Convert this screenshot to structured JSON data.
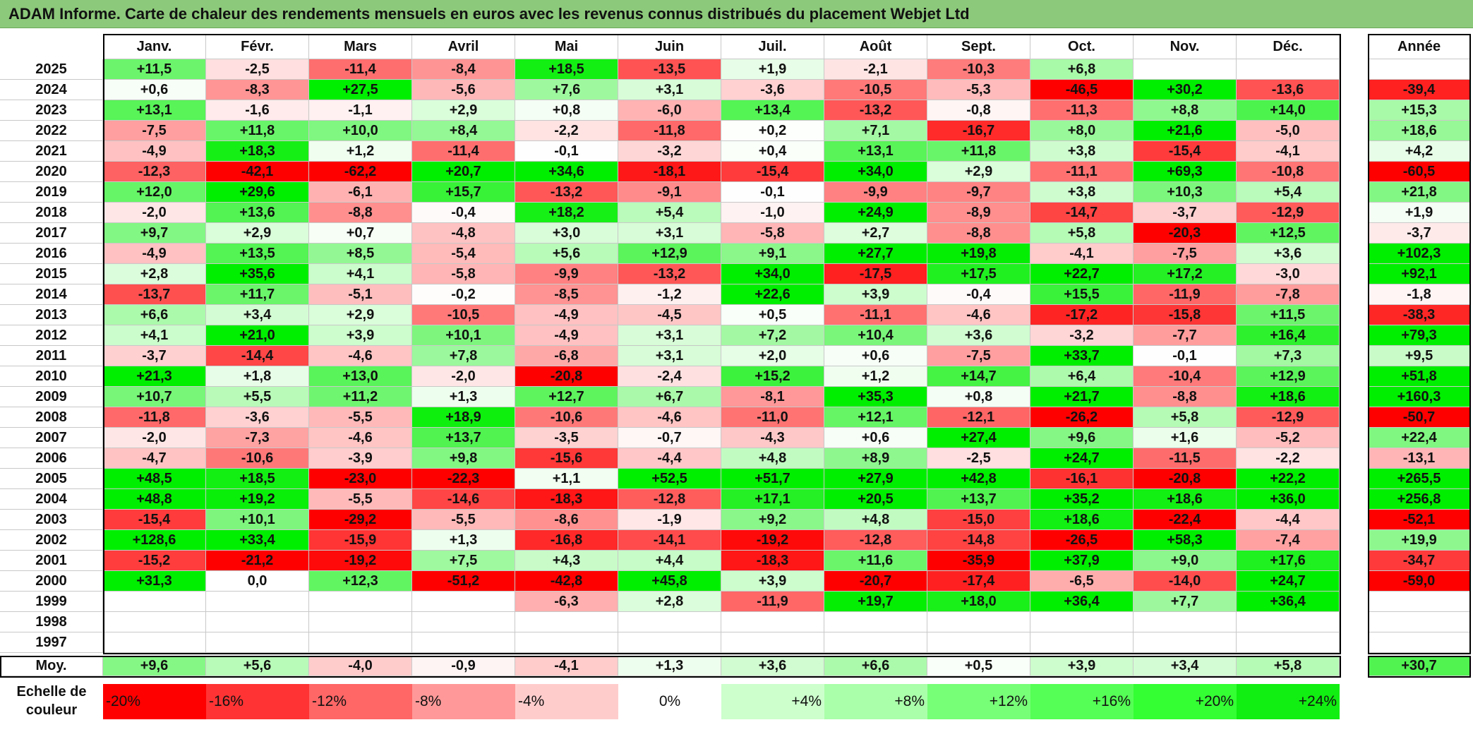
{
  "title": "ADAM Informe. Carte de chaleur des rendements mensuels en euros avec les revenus connus distribués du placement Webjet Ltd",
  "chart_data": {
    "type": "heatmap",
    "months": [
      "Janv.",
      "Févr.",
      "Mars",
      "Avril",
      "Mai",
      "Juin",
      "Juil.",
      "Août",
      "Sept.",
      "Oct.",
      "Nov.",
      "Déc."
    ],
    "year_header": "Année",
    "rows": [
      {
        "year": "2025",
        "values": [
          "+11,5",
          "-2,5",
          "-11,4",
          "-8,4",
          "+18,5",
          "-13,5",
          "+1,9",
          "-2,1",
          "-10,3",
          "+6,8",
          "",
          ""
        ],
        "annual": ""
      },
      {
        "year": "2024",
        "values": [
          "+0,6",
          "-8,3",
          "+27,5",
          "-5,6",
          "+7,6",
          "+3,1",
          "-3,6",
          "-10,5",
          "-5,3",
          "-46,5",
          "+30,2",
          "-13,6"
        ],
        "annual": "-39,4"
      },
      {
        "year": "2023",
        "values": [
          "+13,1",
          "-1,6",
          "-1,1",
          "+2,9",
          "+0,8",
          "-6,0",
          "+13,4",
          "-13,2",
          "-0,8",
          "-11,3",
          "+8,8",
          "+14,0"
        ],
        "annual": "+15,3"
      },
      {
        "year": "2022",
        "values": [
          "-7,5",
          "+11,8",
          "+10,0",
          "+8,4",
          "-2,2",
          "-11,8",
          "+0,2",
          "+7,1",
          "-16,7",
          "+8,0",
          "+21,6",
          "-5,0"
        ],
        "annual": "+18,6"
      },
      {
        "year": "2021",
        "values": [
          "-4,9",
          "+18,3",
          "+1,2",
          "-11,4",
          "-0,1",
          "-3,2",
          "+0,4",
          "+13,1",
          "+11,8",
          "+3,8",
          "-15,4",
          "-4,1"
        ],
        "annual": "+4,2"
      },
      {
        "year": "2020",
        "values": [
          "-12,3",
          "-42,1",
          "-62,2",
          "+20,7",
          "+34,6",
          "-18,1",
          "-15,4",
          "+34,0",
          "+2,9",
          "-11,1",
          "+69,3",
          "-10,8"
        ],
        "annual": "-60,5"
      },
      {
        "year": "2019",
        "values": [
          "+12,0",
          "+29,6",
          "-6,1",
          "+15,7",
          "-13,2",
          "-9,1",
          "-0,1",
          "-9,9",
          "-9,7",
          "+3,8",
          "+10,3",
          "+5,4"
        ],
        "annual": "+21,8"
      },
      {
        "year": "2018",
        "values": [
          "-2,0",
          "+13,6",
          "-8,8",
          "-0,4",
          "+18,2",
          "+5,4",
          "-1,0",
          "+24,9",
          "-8,9",
          "-14,7",
          "-3,7",
          "-12,9"
        ],
        "annual": "+1,9"
      },
      {
        "year": "2017",
        "values": [
          "+9,7",
          "+2,9",
          "+0,7",
          "-4,8",
          "+3,0",
          "+3,1",
          "-5,8",
          "+2,7",
          "-8,8",
          "+5,8",
          "-20,3",
          "+12,5"
        ],
        "annual": "-3,7"
      },
      {
        "year": "2016",
        "values": [
          "-4,9",
          "+13,5",
          "+8,5",
          "-5,4",
          "+5,6",
          "+12,9",
          "+9,1",
          "+27,7",
          "+19,8",
          "-4,1",
          "-7,5",
          "+3,6"
        ],
        "annual": "+102,3"
      },
      {
        "year": "2015",
        "values": [
          "+2,8",
          "+35,6",
          "+4,1",
          "-5,8",
          "-9,9",
          "-13,2",
          "+34,0",
          "-17,5",
          "+17,5",
          "+22,7",
          "+17,2",
          "-3,0"
        ],
        "annual": "+92,1"
      },
      {
        "year": "2014",
        "values": [
          "-13,7",
          "+11,7",
          "-5,1",
          "-0,2",
          "-8,5",
          "-1,2",
          "+22,6",
          "+3,9",
          "-0,4",
          "+15,5",
          "-11,9",
          "-7,8"
        ],
        "annual": "-1,8"
      },
      {
        "year": "2013",
        "values": [
          "+6,6",
          "+3,4",
          "+2,9",
          "-10,5",
          "-4,9",
          "-4,5",
          "+0,5",
          "-11,1",
          "-4,6",
          "-17,2",
          "-15,8",
          "+11,5"
        ],
        "annual": "-38,3"
      },
      {
        "year": "2012",
        "values": [
          "+4,1",
          "+21,0",
          "+3,9",
          "+10,1",
          "-4,9",
          "+3,1",
          "+7,2",
          "+10,4",
          "+3,6",
          "-3,2",
          "-7,7",
          "+16,4"
        ],
        "annual": "+79,3"
      },
      {
        "year": "2011",
        "values": [
          "-3,7",
          "-14,4",
          "-4,6",
          "+7,8",
          "-6,8",
          "+3,1",
          "+2,0",
          "+0,6",
          "-7,5",
          "+33,7",
          "-0,1",
          "+7,3"
        ],
        "annual": "+9,5"
      },
      {
        "year": "2010",
        "values": [
          "+21,3",
          "+1,8",
          "+13,0",
          "-2,0",
          "-20,8",
          "-2,4",
          "+15,2",
          "+1,2",
          "+14,7",
          "+6,4",
          "-10,4",
          "+12,9"
        ],
        "annual": "+51,8"
      },
      {
        "year": "2009",
        "values": [
          "+10,7",
          "+5,5",
          "+11,2",
          "+1,3",
          "+12,7",
          "+6,7",
          "-8,1",
          "+35,3",
          "+0,8",
          "+21,7",
          "-8,8",
          "+18,6"
        ],
        "annual": "+160,3"
      },
      {
        "year": "2008",
        "values": [
          "-11,8",
          "-3,6",
          "-5,5",
          "+18,9",
          "-10,6",
          "-4,6",
          "-11,0",
          "+12,1",
          "-12,1",
          "-26,2",
          "+5,8",
          "-12,9"
        ],
        "annual": "-50,7"
      },
      {
        "year": "2007",
        "values": [
          "-2,0",
          "-7,3",
          "-4,6",
          "+13,7",
          "-3,5",
          "-0,7",
          "-4,3",
          "+0,6",
          "+27,4",
          "+9,6",
          "+1,6",
          "-5,2"
        ],
        "annual": "+22,4"
      },
      {
        "year": "2006",
        "values": [
          "-4,7",
          "-10,6",
          "-3,9",
          "+9,8",
          "-15,6",
          "-4,4",
          "+4,8",
          "+8,9",
          "-2,5",
          "+24,7",
          "-11,5",
          "-2,2"
        ],
        "annual": "-13,1"
      },
      {
        "year": "2005",
        "values": [
          "+48,5",
          "+18,5",
          "-23,0",
          "-22,3",
          "+1,1",
          "+52,5",
          "+51,7",
          "+27,9",
          "+42,8",
          "-16,1",
          "-20,8",
          "+22,2"
        ],
        "annual": "+265,5"
      },
      {
        "year": "2004",
        "values": [
          "+48,8",
          "+19,2",
          "-5,5",
          "-14,6",
          "-18,3",
          "-12,8",
          "+17,1",
          "+20,5",
          "+13,7",
          "+35,2",
          "+18,6",
          "+36,0"
        ],
        "annual": "+256,8"
      },
      {
        "year": "2003",
        "values": [
          "-15,4",
          "+10,1",
          "-29,2",
          "-5,5",
          "-8,6",
          "-1,9",
          "+9,2",
          "+4,8",
          "-15,0",
          "+18,6",
          "-22,4",
          "-4,4"
        ],
        "annual": "-52,1"
      },
      {
        "year": "2002",
        "values": [
          "+128,6",
          "+33,4",
          "-15,9",
          "+1,3",
          "-16,8",
          "-14,1",
          "-19,2",
          "-12,8",
          "-14,8",
          "-26,5",
          "+58,3",
          "-7,4"
        ],
        "annual": "+19,9"
      },
      {
        "year": "2001",
        "values": [
          "-15,2",
          "-21,2",
          "-19,2",
          "+7,5",
          "+4,3",
          "+4,4",
          "-18,3",
          "+11,6",
          "-35,9",
          "+37,9",
          "+9,0",
          "+17,6"
        ],
        "annual": "-34,7"
      },
      {
        "year": "2000",
        "values": [
          "+31,3",
          "0,0",
          "+12,3",
          "-51,2",
          "-42,8",
          "+45,8",
          "+3,9",
          "-20,7",
          "-17,4",
          "-6,5",
          "-14,0",
          "+24,7"
        ],
        "annual": "-59,0"
      },
      {
        "year": "1999",
        "values": [
          "",
          "",
          "",
          "",
          "-6,3",
          "+2,8",
          "-11,9",
          "+19,7",
          "+18,0",
          "+36,4",
          "+7,7",
          "+36,4"
        ],
        "annual": ""
      },
      {
        "year": "1998",
        "values": [
          "",
          "",
          "",
          "",
          "",
          "",
          "",
          "",
          "",
          "",
          "",
          ""
        ],
        "annual": ""
      },
      {
        "year": "1997",
        "values": [
          "",
          "",
          "",
          "",
          "",
          "",
          "",
          "",
          "",
          "",
          "",
          ""
        ],
        "annual": ""
      }
    ],
    "average_row": {
      "label": "Moy.",
      "values": [
        "+9,6",
        "+5,6",
        "-4,0",
        "-0,9",
        "-4,1",
        "+1,3",
        "+3,6",
        "+6,6",
        "+0,5",
        "+3,9",
        "+3,4",
        "+5,8"
      ],
      "annual": "+30,7"
    },
    "scale": {
      "label": "Echelle de couleur",
      "steps": [
        "-20%",
        "-16%",
        "-12%",
        "-8%",
        "-4%",
        "0%",
        "+4%",
        "+8%",
        "+12%",
        "+16%",
        "+20%",
        "+24%"
      ],
      "colors": [
        "#ff0000",
        "#ff3333",
        "#ff6666",
        "#ff9999",
        "#ffcccc",
        "#ffffff",
        "#ccffcc",
        "#aaffaa",
        "#77ff77",
        "#55ff55",
        "#33ff33",
        "#11ee11"
      ]
    },
    "colors": {
      "negative_max": "#ff0000",
      "neutral": "#ffffff",
      "positive_max": "#00ee00"
    }
  }
}
